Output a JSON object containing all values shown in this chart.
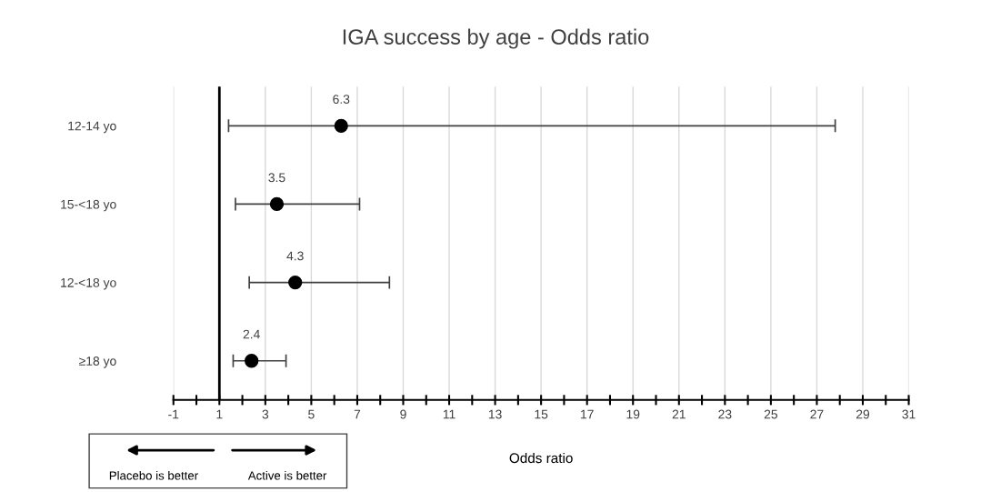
{
  "chart_data": {
    "type": "scatter",
    "orientation": "horizontal",
    "title": "IGA success by age - Odds ratio",
    "xlabel": "Odds ratio",
    "categories": [
      "12-14 yo",
      "15-<18 yo",
      "12-<18 yo",
      "≥18 yo"
    ],
    "values": [
      6.3,
      3.5,
      4.3,
      2.4
    ],
    "errors": [
      [
        1.4,
        27.8
      ],
      [
        1.7,
        7.1
      ],
      [
        2.3,
        8.4
      ],
      [
        1.6,
        3.9
      ]
    ],
    "color": "#000000",
    "marker": "circle",
    "data_labels": true,
    "xlim": [
      -1,
      31
    ],
    "xticks": [
      -1,
      {
        "value": 0,
        "label": null
      },
      1,
      {
        "value": 2,
        "label": null
      },
      3,
      {
        "value": 4,
        "label": null
      },
      5,
      {
        "value": 6,
        "label": null
      },
      7,
      {
        "value": 8,
        "label": null
      },
      9,
      {
        "value": 10,
        "label": null
      },
      11,
      {
        "value": 12,
        "label": null
      },
      13,
      {
        "value": 14,
        "label": null
      },
      15,
      {
        "value": 16,
        "label": null
      },
      17,
      {
        "value": 18,
        "label": null
      },
      19,
      {
        "value": 20,
        "label": null
      },
      21,
      {
        "value": 22,
        "label": null
      },
      23,
      {
        "value": 24,
        "label": null
      },
      25,
      {
        "value": 26,
        "label": null
      },
      27,
      {
        "value": 28,
        "label": null
      },
      29,
      {
        "value": 30,
        "label": null
      },
      31
    ],
    "grid": "x",
    "ref_lines": [
      {
        "axis": "x",
        "value": 1,
        "color": "#000000",
        "line_style": "solid"
      }
    ],
    "annotations": [
      "Placebo is better",
      "Active is better"
    ]
  }
}
